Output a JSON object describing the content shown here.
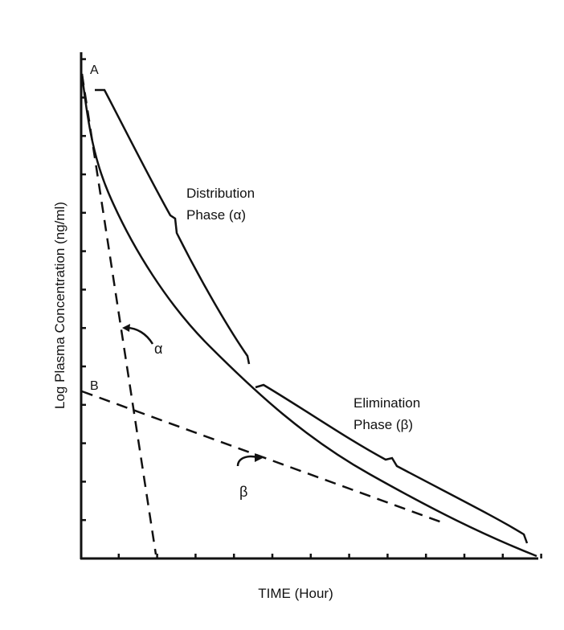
{
  "diagram": {
    "y_axis_label": "Log Plasma Concentration (ng/ml)",
    "x_axis_label": "TIME (Hour)",
    "point_a": "A",
    "point_b": "B",
    "distribution": {
      "line1": "Distribution",
      "line2": "Phase (α)"
    },
    "elimination": {
      "line1": "Elimination",
      "line2": "Phase (β)"
    },
    "alpha_label": "α",
    "beta_label": "β",
    "colors": {
      "ink": "#111111",
      "background": "#ffffff"
    }
  }
}
